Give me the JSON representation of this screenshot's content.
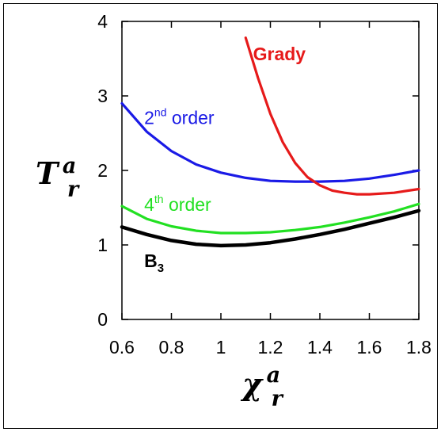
{
  "chart_data": {
    "type": "line",
    "title": "",
    "xlabel": {
      "base": "χ",
      "sup": "a",
      "sub": "r"
    },
    "ylabel": {
      "base": "T",
      "sup": "a",
      "sub": "r"
    },
    "xlim": [
      0.6,
      1.8
    ],
    "ylim": [
      0,
      4
    ],
    "xticks": [
      "0.6",
      "0.8",
      "1",
      "1.2",
      "1.4",
      "1.6",
      "1.8"
    ],
    "xtick_values": [
      0.6,
      0.8,
      1.0,
      1.2,
      1.4,
      1.6,
      1.8
    ],
    "yticks": [
      "0",
      "1",
      "2",
      "3",
      "4"
    ],
    "ytick_values": [
      0,
      1,
      2,
      3,
      4
    ],
    "grid": false,
    "series": [
      {
        "key": "second",
        "color": "#1a1ae6",
        "x": [
          0.6,
          0.7,
          0.8,
          0.9,
          1.0,
          1.1,
          1.2,
          1.3,
          1.4,
          1.5,
          1.6,
          1.7,
          1.8
        ],
        "y": [
          2.9,
          2.52,
          2.26,
          2.08,
          1.97,
          1.9,
          1.86,
          1.85,
          1.85,
          1.86,
          1.89,
          1.94,
          2.0
        ]
      },
      {
        "key": "fourth",
        "color": "#22e022",
        "x": [
          0.6,
          0.7,
          0.8,
          0.9,
          1.0,
          1.1,
          1.2,
          1.3,
          1.4,
          1.5,
          1.6,
          1.7,
          1.8
        ],
        "y": [
          1.52,
          1.35,
          1.25,
          1.19,
          1.16,
          1.16,
          1.17,
          1.2,
          1.24,
          1.3,
          1.37,
          1.45,
          1.55
        ]
      },
      {
        "key": "b3",
        "color": "#000000",
        "x": [
          0.6,
          0.7,
          0.8,
          0.9,
          1.0,
          1.1,
          1.2,
          1.3,
          1.4,
          1.5,
          1.6,
          1.7,
          1.8
        ],
        "y": [
          1.24,
          1.14,
          1.06,
          1.01,
          0.99,
          1.0,
          1.03,
          1.08,
          1.14,
          1.21,
          1.29,
          1.37,
          1.46
        ]
      },
      {
        "key": "grady",
        "color": "#e61a1a",
        "x": [
          1.1,
          1.15,
          1.2,
          1.25,
          1.3,
          1.35,
          1.4,
          1.45,
          1.5,
          1.55,
          1.6,
          1.7,
          1.8
        ],
        "y": [
          3.78,
          3.24,
          2.76,
          2.38,
          2.1,
          1.91,
          1.8,
          1.73,
          1.7,
          1.68,
          1.68,
          1.7,
          1.75
        ]
      }
    ],
    "annotations": [
      {
        "key": "second",
        "base": "2",
        "sup": "nd",
        "rest": " order",
        "color": "#1a1ae6",
        "x": 0.69,
        "y": 2.62,
        "weight": "normal"
      },
      {
        "key": "fourth",
        "base": "4",
        "sup": "th",
        "rest": " order",
        "color": "#22e022",
        "x": 0.69,
        "y": 1.46,
        "weight": "normal"
      },
      {
        "key": "b3",
        "base": "B",
        "sub": "3",
        "rest": "",
        "color": "#000000",
        "x": 0.69,
        "y": 0.7,
        "weight": "bold"
      },
      {
        "key": "grady",
        "base": "Grady",
        "rest": "",
        "color": "#e61a1a",
        "x": 1.13,
        "y": 3.48,
        "weight": "bold"
      }
    ]
  }
}
